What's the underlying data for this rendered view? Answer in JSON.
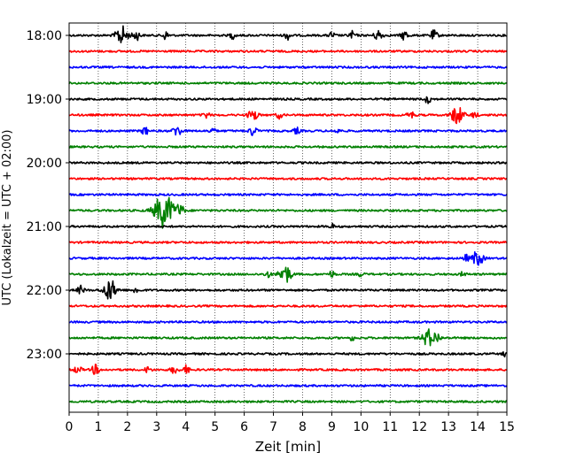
{
  "chart_data": {
    "type": "line",
    "subtype": "seismogram-helicorder",
    "xlabel": "Zeit  [min]",
    "ylabel": "UTC (Lokalzeit = UTC + 02:00)",
    "xlim": [
      0,
      15
    ],
    "x_ticks": [
      "0",
      "1",
      "2",
      "3",
      "4",
      "5",
      "6",
      "7",
      "8",
      "9",
      "10",
      "11",
      "12",
      "13",
      "14",
      "15"
    ],
    "y_tick_labels": [
      "18:00",
      "19:00",
      "20:00",
      "21:00",
      "22:00",
      "23:00"
    ],
    "row_start_times": [
      "18:00",
      "18:15",
      "18:30",
      "18:45",
      "19:00",
      "19:15",
      "19:30",
      "19:45",
      "20:00",
      "20:15",
      "20:30",
      "20:45",
      "21:00",
      "21:15",
      "21:30",
      "21:45",
      "22:00",
      "22:15",
      "22:30",
      "22:45",
      "23:00",
      "23:15",
      "23:30",
      "23:45"
    ],
    "row_colors": [
      "#000000",
      "#ff0000",
      "#0000ff",
      "#008000"
    ],
    "vertical_gridlines": true,
    "gridline_style": "dotted",
    "events": [
      {
        "row": 0,
        "t": [
          1.8,
          2.3,
          3.3,
          5.6,
          7.5,
          9.0,
          9.7,
          10.6,
          11.5,
          12.5
        ],
        "amp": [
          1.2,
          0.6,
          0.5,
          0.4,
          0.5,
          0.4,
          0.5,
          0.7,
          0.6,
          0.6
        ]
      },
      {
        "row": 4,
        "t": [
          12.3
        ],
        "amp": [
          0.5
        ]
      },
      {
        "row": 5,
        "t": [
          4.7,
          6.3,
          7.2,
          11.7,
          13.3,
          13.9
        ],
        "amp": [
          0.4,
          0.8,
          0.4,
          0.5,
          1.2,
          0.4
        ]
      },
      {
        "row": 6,
        "t": [
          2.6,
          3.7,
          4.9,
          6.3,
          7.8,
          9.2
        ],
        "amp": [
          0.5,
          0.7,
          0.4,
          0.6,
          0.4,
          0.3
        ]
      },
      {
        "row": 11,
        "t": [
          3.25,
          3.8
        ],
        "amp": [
          2.2,
          0.7
        ]
      },
      {
        "row": 12,
        "t": [
          9.0
        ],
        "amp": [
          0.3
        ]
      },
      {
        "row": 14,
        "t": [
          13.6,
          14.0
        ],
        "amp": [
          0.4,
          1.0
        ]
      },
      {
        "row": 15,
        "t": [
          6.8,
          7.4,
          9.0,
          10.0,
          13.5
        ],
        "amp": [
          0.4,
          1.2,
          0.4,
          0.3,
          0.3
        ]
      },
      {
        "row": 16,
        "t": [
          0.4,
          1.4,
          2.3
        ],
        "amp": [
          0.5,
          1.3,
          0.4
        ]
      },
      {
        "row": 19,
        "t": [
          9.7,
          12.3,
          12.6
        ],
        "amp": [
          0.3,
          1.1,
          0.6
        ]
      },
      {
        "row": 20,
        "t": [
          15.0
        ],
        "amp": [
          0.5
        ]
      },
      {
        "row": 21,
        "t": [
          0.3,
          0.9,
          2.7,
          3.6,
          4.0
        ],
        "amp": [
          0.5,
          0.6,
          0.4,
          0.5,
          0.5
        ]
      }
    ]
  }
}
